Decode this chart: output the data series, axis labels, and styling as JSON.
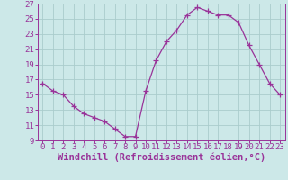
{
  "x": [
    0,
    1,
    2,
    3,
    4,
    5,
    6,
    7,
    8,
    9,
    10,
    11,
    12,
    13,
    14,
    15,
    16,
    17,
    18,
    19,
    20,
    21,
    22,
    23
  ],
  "y": [
    16.5,
    15.5,
    15.0,
    13.5,
    12.5,
    12.0,
    11.5,
    10.5,
    9.5,
    9.5,
    15.5,
    19.5,
    22.0,
    23.5,
    25.5,
    26.5,
    26.0,
    25.5,
    25.5,
    24.5,
    21.5,
    19.0,
    16.5,
    15.0
  ],
  "line_color": "#993399",
  "marker": "+",
  "marker_color": "#993399",
  "bg_color": "#cce8e8",
  "grid_color": "#aacccc",
  "axis_label_color": "#993399",
  "tick_color": "#993399",
  "xlabel": "Windchill (Refroidissement éolien,°C)",
  "xlim": [
    -0.5,
    23.5
  ],
  "ylim": [
    9,
    27
  ],
  "yticks": [
    9,
    11,
    13,
    15,
    17,
    19,
    21,
    23,
    25,
    27
  ],
  "xticks": [
    0,
    1,
    2,
    3,
    4,
    5,
    6,
    7,
    8,
    9,
    10,
    11,
    12,
    13,
    14,
    15,
    16,
    17,
    18,
    19,
    20,
    21,
    22,
    23
  ],
  "tick_fontsize": 6.5,
  "xlabel_fontsize": 7.5
}
